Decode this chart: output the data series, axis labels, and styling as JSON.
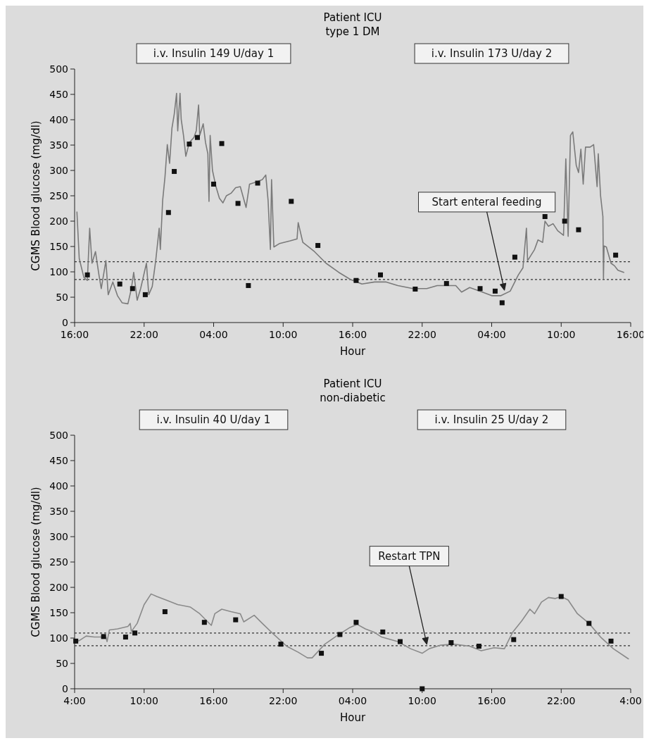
{
  "chart_data": [
    {
      "type": "line",
      "title": "Patient ICU",
      "subtitle": "type 1 DM",
      "xlabel": "Hour",
      "ylabel": "CGMS Blood glucose (mg/dl)",
      "xlim": [
        "2000-01-01T16:00",
        "2000-01-03T16:00"
      ],
      "xticks": [
        {
          "value": "2000-01-01T16:00",
          "label": "16:00"
        },
        {
          "value": "2000-01-01T22:00",
          "label": "22:00"
        },
        {
          "value": "2000-01-02T04:00",
          "label": "04:00"
        },
        {
          "value": "2000-01-02T10:00",
          "label": "10:00"
        },
        {
          "value": "2000-01-02T16:00",
          "label": "16:00"
        },
        {
          "value": "2000-01-02T22:00",
          "label": "22:00"
        },
        {
          "value": "2000-01-03T04:00",
          "label": "04:00"
        },
        {
          "value": "2000-01-03T10:00",
          "label": "10:00"
        },
        {
          "value": "2000-01-03T16:00",
          "label": "16:00"
        }
      ],
      "ylim": [
        0,
        500
      ],
      "yticks": [
        0,
        50,
        100,
        150,
        200,
        250,
        300,
        350,
        400,
        450,
        500
      ],
      "ref_lines": [
        {
          "axis": "y",
          "value": 120,
          "color": "#333333",
          "line_style": "dashed"
        },
        {
          "axis": "y",
          "value": 85,
          "color": "#333333",
          "line_style": "dashed"
        }
      ],
      "annotations": [
        "i.v. Insulin 149 U/day 1",
        "i.v. Insulin 173 U/day 2",
        {
          "text": "Start enteral feeding",
          "x": "2000-01-03T05:06",
          "y": 64
        }
      ],
      "series": [
        {
          "type": "line",
          "color": "#7a7a7a",
          "line_style": "solid",
          "x": [
            "2000-01-01T16:12",
            "2000-01-01T16:24",
            "2000-01-01T16:48",
            "2000-01-01T17:06",
            "2000-01-01T17:18",
            "2000-01-01T17:30",
            "2000-01-01T17:48",
            "2000-01-01T18:06",
            "2000-01-01T18:18",
            "2000-01-01T18:42",
            "2000-01-01T18:54",
            "2000-01-01T19:18",
            "2000-01-01T19:42",
            "2000-01-01T20:06",
            "2000-01-01T20:36",
            "2000-01-01T20:54",
            "2000-01-01T21:06",
            "2000-01-01T21:24",
            "2000-01-01T21:42",
            "2000-01-01T22:12",
            "2000-01-01T22:24",
            "2000-01-01T22:42",
            "2000-01-01T23:00",
            "2000-01-01T23:18",
            "2000-01-01T23:24",
            "2000-01-01T23:36",
            "2000-01-01T23:48",
            "2000-01-02T00:00",
            "2000-01-02T00:12",
            "2000-01-02T00:24",
            "2000-01-02T00:36",
            "2000-01-02T00:48",
            "2000-01-02T00:54",
            "2000-01-02T01:06",
            "2000-01-02T01:12",
            "2000-01-02T01:24",
            "2000-01-02T01:36",
            "2000-01-02T01:54",
            "2000-01-02T02:18",
            "2000-01-02T02:30",
            "2000-01-02T02:42",
            "2000-01-02T02:48",
            "2000-01-02T03:06",
            "2000-01-02T03:18",
            "2000-01-02T03:30",
            "2000-01-02T03:36",
            "2000-01-02T03:42",
            "2000-01-02T03:54",
            "2000-01-02T04:12",
            "2000-01-02T04:30",
            "2000-01-02T04:48",
            "2000-01-02T05:06",
            "2000-01-02T05:30",
            "2000-01-02T05:54",
            "2000-01-02T06:18",
            "2000-01-02T06:48",
            "2000-01-02T07:06",
            "2000-01-02T07:48",
            "2000-01-02T08:12",
            "2000-01-02T08:30",
            "2000-01-02T08:42",
            "2000-01-02T08:54",
            "2000-01-02T09:00",
            "2000-01-02T09:12",
            "2000-01-02T09:42",
            "2000-01-02T10:36",
            "2000-01-02T11:12",
            "2000-01-02T11:18",
            "2000-01-02T11:42",
            "2000-01-02T12:42",
            "2000-01-02T13:42",
            "2000-01-02T14:48",
            "2000-01-02T15:48",
            "2000-01-02T16:48",
            "2000-01-02T17:54",
            "2000-01-02T18:54",
            "2000-01-02T19:54",
            "2000-01-02T21:12",
            "2000-01-02T22:24",
            "2000-01-02T23:18",
            "2000-01-03T00:06",
            "2000-01-03T00:54",
            "2000-01-03T01:24",
            "2000-01-03T02:06",
            "2000-01-03T03:12",
            "2000-01-03T04:00",
            "2000-01-03T04:48",
            "2000-01-03T05:36",
            "2000-01-03T06:18",
            "2000-01-03T06:42",
            "2000-01-03T07:00",
            "2000-01-03T07:06",
            "2000-01-03T07:42",
            "2000-01-03T08:00",
            "2000-01-03T08:24",
            "2000-01-03T08:36",
            "2000-01-03T08:54",
            "2000-01-03T09:18",
            "2000-01-03T09:42",
            "2000-01-03T10:12",
            "2000-01-03T10:24",
            "2000-01-03T10:36",
            "2000-01-03T10:48",
            "2000-01-03T11:00",
            "2000-01-03T11:18",
            "2000-01-03T11:30",
            "2000-01-03T11:42",
            "2000-01-03T11:54",
            "2000-01-03T12:06",
            "2000-01-03T12:30",
            "2000-01-03T12:48",
            "2000-01-03T13:06",
            "2000-01-03T13:12",
            "2000-01-03T13:24",
            "2000-01-03T13:36",
            "2000-01-03T13:39",
            "2000-01-03T13:42",
            "2000-01-03T13:54",
            "2000-01-03T14:18",
            "2000-01-03T14:36",
            "2000-01-03T14:54",
            "2000-01-03T15:24"
          ],
          "values": [
            218,
            126,
            89,
            83,
            186,
            117,
            140,
            94,
            67,
            122,
            55,
            80,
            53,
            39,
            37,
            67,
            99,
            44,
            67,
            117,
            55,
            71,
            122,
            186,
            144,
            241,
            287,
            351,
            314,
            383,
            411,
            452,
            378,
            452,
            401,
            369,
            328,
            355,
            365,
            378,
            429,
            369,
            392,
            355,
            333,
            239,
            369,
            300,
            268,
            245,
            236,
            250,
            255,
            266,
            268,
            227,
            273,
            278,
            282,
            291,
            241,
            144,
            282,
            149,
            156,
            161,
            165,
            197,
            158,
            140,
            117,
            99,
            85,
            76,
            80,
            80,
            73,
            67,
            67,
            73,
            73,
            73,
            60,
            69,
            60,
            53,
            53,
            62,
            94,
            108,
            186,
            122,
            144,
            163,
            158,
            200,
            190,
            195,
            181,
            172,
            323,
            170,
            369,
            376,
            310,
            296,
            342,
            273,
            346,
            346,
            351,
            268,
            333,
            250,
            209,
            87,
            151,
            149,
            117,
            112,
            103,
            99
          ]
        },
        {
          "type": "scatter",
          "color": "#111111",
          "marker": "square",
          "x": [
            "2000-01-01T17:06",
            "2000-01-01T19:54",
            "2000-01-01T21:00",
            "2000-01-01T22:06",
            "2000-01-02T00:06",
            "2000-01-02T00:36",
            "2000-01-02T01:54",
            "2000-01-02T02:36",
            "2000-01-02T04:00",
            "2000-01-02T04:42",
            "2000-01-02T06:06",
            "2000-01-02T07:00",
            "2000-01-02T07:48",
            "2000-01-02T10:42",
            "2000-01-02T13:00",
            "2000-01-02T16:18",
            "2000-01-02T18:24",
            "2000-01-02T21:24",
            "2000-01-03T00:06",
            "2000-01-03T03:00",
            "2000-01-03T04:18",
            "2000-01-03T04:54",
            "2000-01-03T06:00",
            "2000-01-03T08:36",
            "2000-01-03T10:18",
            "2000-01-03T11:30",
            "2000-01-03T14:42"
          ],
          "values": [
            94,
            76,
            67,
            55,
            217,
            298,
            352,
            365,
            273,
            353,
            235,
            73,
            275,
            239,
            152,
            83,
            94,
            66,
            77,
            67,
            62,
            39,
            129,
            209,
            200,
            183,
            133
          ]
        }
      ]
    },
    {
      "type": "line",
      "title": "Patient ICU",
      "subtitle": "non-diabetic",
      "xlabel": "Hour",
      "ylabel": "CGMS Blood glucose (mg/dl)",
      "xlim": [
        "2000-01-01T04:00",
        "2000-01-03T04:00"
      ],
      "xticks": [
        {
          "value": "2000-01-01T04:00",
          "label": "4:00"
        },
        {
          "value": "2000-01-01T10:00",
          "label": "10:00"
        },
        {
          "value": "2000-01-01T16:00",
          "label": "16:00"
        },
        {
          "value": "2000-01-01T22:00",
          "label": "22:00"
        },
        {
          "value": "2000-01-02T04:00",
          "label": "04:00"
        },
        {
          "value": "2000-01-02T10:00",
          "label": "10:00"
        },
        {
          "value": "2000-01-02T16:00",
          "label": "16:00"
        },
        {
          "value": "2000-01-02T22:00",
          "label": "22:00"
        },
        {
          "value": "2000-01-03T04:00",
          "label": "4:00"
        }
      ],
      "ylim": [
        0,
        500
      ],
      "yticks": [
        0,
        50,
        100,
        150,
        200,
        250,
        300,
        350,
        400,
        450,
        500
      ],
      "ref_lines": [
        {
          "axis": "y",
          "value": 110,
          "color": "#333333",
          "line_style": "dashed"
        },
        {
          "axis": "y",
          "value": 85,
          "color": "#333333",
          "line_style": "dashed"
        }
      ],
      "annotations": [
        "i.v. Insulin 40 U/day 1",
        "i.v. Insulin 25 U/day 2",
        {
          "text": "Restart TPN",
          "x": "2000-01-02T10:24",
          "y": 88
        }
      ],
      "series": [
        {
          "type": "line",
          "color": "#8a8a8a",
          "line_style": "solid",
          "x": [
            "2000-01-01T04:00",
            "2000-01-01T04:24",
            "2000-01-01T05:00",
            "2000-01-01T05:42",
            "2000-01-01T06:42",
            "2000-01-01T06:48",
            "2000-01-01T07:00",
            "2000-01-01T07:42",
            "2000-01-01T08:36",
            "2000-01-01T08:48",
            "2000-01-01T08:54",
            "2000-01-01T09:24",
            "2000-01-01T10:00",
            "2000-01-01T10:36",
            "2000-01-01T11:06",
            "2000-01-01T11:54",
            "2000-01-01T12:54",
            "2000-01-01T14:00",
            "2000-01-01T14:48",
            "2000-01-01T15:24",
            "2000-01-01T15:48",
            "2000-01-01T16:06",
            "2000-01-01T16:42",
            "2000-01-01T17:30",
            "2000-01-01T18:18",
            "2000-01-01T18:36",
            "2000-01-01T19:30",
            "2000-01-01T20:12",
            "2000-01-01T21:12",
            "2000-01-01T22:18",
            "2000-01-01T23:18",
            "2000-01-02T00:06",
            "2000-01-02T00:30",
            "2000-01-02T01:36",
            "2000-01-02T02:48",
            "2000-01-02T03:42",
            "2000-01-02T04:24",
            "2000-01-02T05:06",
            "2000-01-02T05:54",
            "2000-01-02T06:30",
            "2000-01-02T07:54",
            "2000-01-02T09:00",
            "2000-01-02T10:00",
            "2000-01-02T10:36",
            "2000-01-02T11:36",
            "2000-01-02T12:42",
            "2000-01-02T14:06",
            "2000-01-02T15:06",
            "2000-01-02T16:12",
            "2000-01-02T17:06",
            "2000-01-02T17:48",
            "2000-01-02T18:36",
            "2000-01-02T19:18",
            "2000-01-02T19:42",
            "2000-01-02T20:18",
            "2000-01-02T20:54",
            "2000-01-02T21:30",
            "2000-01-02T22:00",
            "2000-01-02T22:36",
            "2000-01-02T23:24",
            "2000-01-03T00:24",
            "2000-01-03T01:24",
            "2000-01-03T02:30",
            "2000-01-03T03:48"
          ],
          "values": [
            93,
            95,
            104,
            102,
            102,
            93,
            116,
            118,
            123,
            129,
            113,
            129,
            166,
            187,
            182,
            175,
            166,
            161,
            148,
            134,
            125,
            148,
            157,
            152,
            148,
            132,
            145,
            129,
            107,
            84,
            72,
            61,
            61,
            88,
            107,
            120,
            127,
            118,
            111,
            102,
            93,
            79,
            70,
            79,
            86,
            88,
            84,
            75,
            81,
            79,
            111,
            134,
            157,
            148,
            171,
            180,
            178,
            182,
            175,
            148,
            129,
            102,
            79,
            59
          ]
        },
        {
          "type": "scatter",
          "color": "#111111",
          "marker": "square",
          "x": [
            "2000-01-01T04:06",
            "2000-01-01T06:30",
            "2000-01-01T08:24",
            "2000-01-01T09:12",
            "2000-01-01T11:48",
            "2000-01-01T15:12",
            "2000-01-01T17:54",
            "2000-01-01T21:48",
            "2000-01-02T01:18",
            "2000-01-02T02:54",
            "2000-01-02T04:18",
            "2000-01-02T06:36",
            "2000-01-02T08:06",
            "2000-01-02T10:00",
            "2000-01-02T12:30",
            "2000-01-02T14:54",
            "2000-01-02T17:54",
            "2000-01-02T22:00",
            "2000-01-03T00:24",
            "2000-01-03T02:18"
          ],
          "values": [
            94,
            103,
            102,
            110,
            152,
            131,
            136,
            88,
            70,
            107,
            131,
            112,
            93,
            0,
            91,
            84,
            97,
            182,
            129,
            94
          ]
        }
      ]
    }
  ]
}
